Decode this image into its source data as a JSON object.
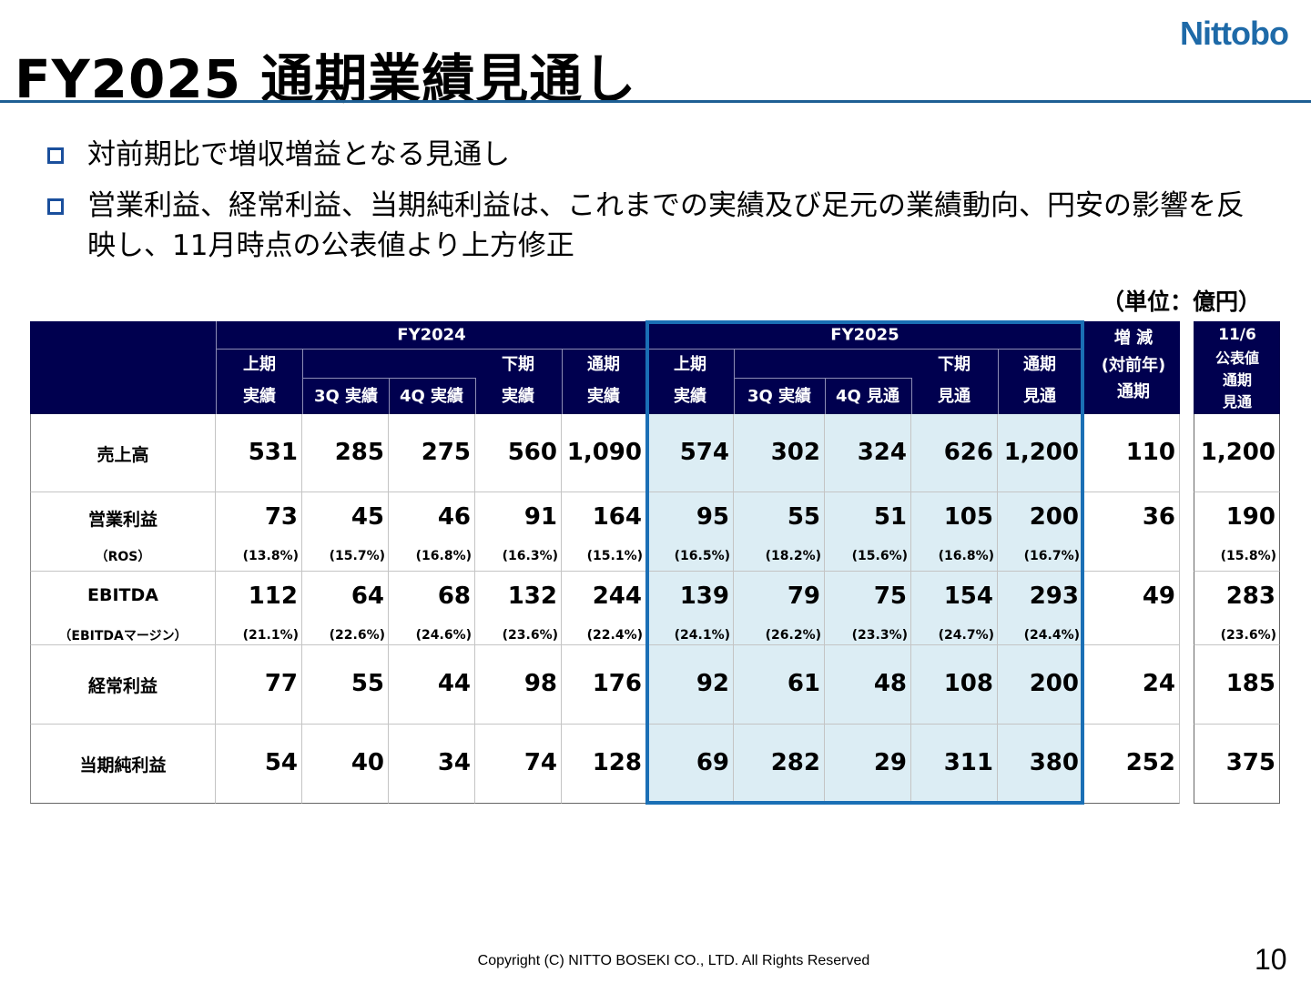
{
  "header": {
    "title": "FY2025 通期業績見通し",
    "logo": "Nittobo"
  },
  "bullets": [
    "対前期比で増収増益となる見通し",
    "営業利益、経常利益、当期純利益は、これまでの実績及び足元の業績動向、円安の影響を反映し、11月時点の公表値より上方修正"
  ],
  "unit": "（単位：億円）",
  "table": {
    "groups": {
      "fy2024": "FY2024",
      "fy2025": "FY2025",
      "change": [
        "増 減",
        "(対前年)",
        "通期"
      ],
      "forecast": [
        "11/6",
        "公表値",
        "通期",
        "見通"
      ]
    },
    "fy2024_cols": {
      "h1": "上期",
      "h1b": "実績",
      "q3": "3Q 実績",
      "q4": "4Q 実績",
      "h2": "下期",
      "h2b": "実績",
      "fy": "通期",
      "fyb": "実績"
    },
    "fy2025_cols": {
      "h1": "上期",
      "h1b": "実績",
      "q3": "3Q 実績",
      "q4": "4Q 見通",
      "h2": "下期",
      "h2b": "見通",
      "fy": "通期",
      "fyb": "見通"
    },
    "rows": [
      {
        "label": "売上高",
        "sublabel": "",
        "values": [
          "531",
          "285",
          "275",
          "560",
          "1,090",
          "574",
          "302",
          "324",
          "626",
          "1,200",
          "110",
          "1,200"
        ],
        "subs": []
      },
      {
        "label": "営業利益",
        "sublabel": "（ROS）",
        "values": [
          "73",
          "45",
          "46",
          "91",
          "164",
          "95",
          "55",
          "51",
          "105",
          "200",
          "36",
          "190"
        ],
        "subs": [
          "(13.8%)",
          "(15.7%)",
          "(16.8%)",
          "(16.3%)",
          "(15.1%)",
          "(16.5%)",
          "(18.2%)",
          "(15.6%)",
          "(16.8%)",
          "(16.7%)",
          "",
          "(15.8%)"
        ]
      },
      {
        "label": "EBITDA",
        "sublabel": "（EBITDAマージン）",
        "values": [
          "112",
          "64",
          "68",
          "132",
          "244",
          "139",
          "79",
          "75",
          "154",
          "293",
          "49",
          "283"
        ],
        "subs": [
          "(21.1%)",
          "(22.6%)",
          "(24.6%)",
          "(23.6%)",
          "(22.4%)",
          "(24.1%)",
          "(26.2%)",
          "(23.3%)",
          "(24.7%)",
          "(24.4%)",
          "",
          "(23.6%)"
        ]
      },
      {
        "label": "経常利益",
        "sublabel": "",
        "values": [
          "77",
          "55",
          "44",
          "98",
          "176",
          "92",
          "61",
          "48",
          "108",
          "200",
          "24",
          "185"
        ],
        "subs": []
      },
      {
        "label": "当期純利益",
        "sublabel": "",
        "values": [
          "54",
          "40",
          "34",
          "74",
          "128",
          "69",
          "282",
          "29",
          "311",
          "380",
          "252",
          "375"
        ],
        "subs": []
      }
    ]
  },
  "colors": {
    "header_bg": "#00004f",
    "highlight_bg": "#dcedf4",
    "highlight_border": "#1a6fb5",
    "logo": "#1e6aa8"
  },
  "footer": {
    "copyright": "Copyright (C)  NITTO BOSEKI CO., LTD. All Rights Reserved",
    "page": "10"
  }
}
